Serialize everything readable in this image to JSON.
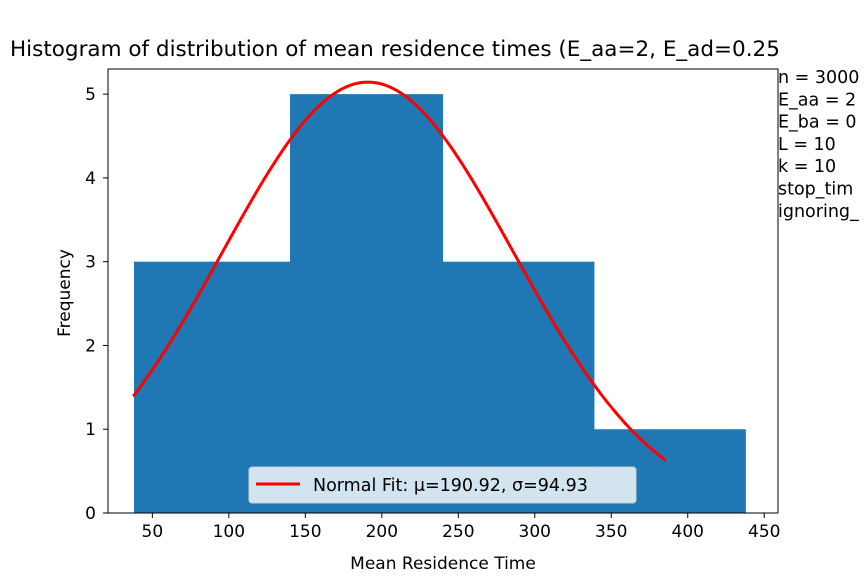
{
  "chart_data": {
    "type": "bar",
    "title": "Histogram of distribution of mean residence times (E_aa=2, E_ad=0.25",
    "xlabel": "Mean Residence Time",
    "ylabel": "Frequency",
    "xlim": [
      21,
      459
    ],
    "ylim": [
      0,
      5.3
    ],
    "x_ticks": [
      50,
      100,
      150,
      200,
      250,
      300,
      350,
      400,
      450
    ],
    "y_ticks": [
      0,
      1,
      2,
      3,
      4,
      5
    ],
    "bins": [
      {
        "start": 38,
        "end": 140,
        "count": 3
      },
      {
        "start": 140,
        "end": 240,
        "count": 5
      },
      {
        "start": 240,
        "end": 339,
        "count": 3
      },
      {
        "start": 339,
        "end": 438,
        "count": 1
      }
    ],
    "fit": {
      "name": "Normal Fit: μ=190.92, σ=94.93",
      "mu": 190.92,
      "sigma": 94.93,
      "x_range": [
        38,
        385
      ],
      "color": "#ff0000"
    },
    "bar_color": "#1f77b4",
    "legend_position": "bottom-center",
    "grid": false,
    "annotations": [
      "n = 3000",
      "E_aa = 2",
      "E_ba = 0",
      "L = 10",
      "k = 10",
      "stop_tim",
      "ignoring_"
    ]
  }
}
